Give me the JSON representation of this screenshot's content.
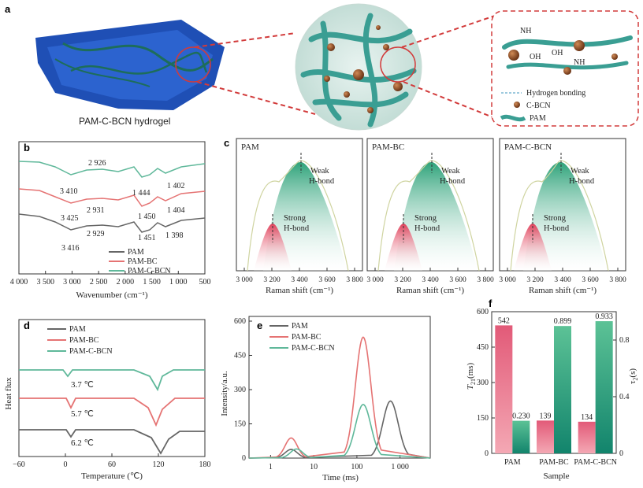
{
  "panels": {
    "a": {
      "label": "a",
      "caption": "PAM-C-BCN hydrogel",
      "legend": {
        "hbond": "Hydrogen bonding",
        "cbcn": "C-BCN",
        "pam": "PAM"
      },
      "groups": {
        "nh2_a": "NH",
        "oh_a": "OH",
        "oh_b": "OH",
        "nh2_b": "NH"
      }
    },
    "b": {
      "label": "b",
      "xlabel": "Wavenumber (cm⁻¹)",
      "ticks": [
        "4 000",
        "3 500",
        "3 000",
        "2 500",
        "2 000",
        "1 500",
        "1 000",
        "500"
      ],
      "legend": [
        "PAM",
        "PAM-BC",
        "PAM-C-BCN"
      ],
      "annotations": {
        "bcn": [
          "3 410",
          "2 926",
          "1 444",
          "1 402"
        ],
        "bc": [
          "3 425",
          "2 931",
          "1 450",
          "1 404"
        ],
        "pam": [
          "3 416",
          "2 929",
          "1 451",
          "1 398"
        ]
      }
    },
    "c": {
      "label": "c",
      "subpanels": [
        {
          "title": "PAM",
          "weak": [
            "Weak",
            "H-bond"
          ],
          "strong": [
            "Strong",
            "H-bond"
          ]
        },
        {
          "title": "PAM-BC",
          "weak": [
            "Weak",
            "H-bond"
          ],
          "strong": [
            "Strong",
            "H-bond"
          ]
        },
        {
          "title": "PAM-C-BCN",
          "weak": [
            "Weak",
            "H-bond"
          ],
          "strong": [
            "Strong",
            "H-bond"
          ]
        }
      ],
      "xlabel": "Raman shift (cm⁻¹)",
      "ticks": [
        "3 000",
        "3 200",
        "3 400",
        "3 600",
        "3 800"
      ]
    },
    "d": {
      "label": "d",
      "ylabel": "Heat flux",
      "xlabel": "Temperature (℃)",
      "ticks": [
        "−60",
        "0",
        "60",
        "120",
        "180"
      ],
      "legend": [
        "PAM",
        "PAM-BC",
        "PAM-C-BCN"
      ],
      "annotations": [
        "3.7 ℃",
        "5.7 ℃",
        "6.2 ℃"
      ]
    },
    "e": {
      "label": "e",
      "ylabel": "Intensity/a.u.",
      "xlabel": "Time (ms)",
      "xticks": [
        "1",
        "10",
        "100",
        "1 000"
      ],
      "yticks": [
        "0",
        "150",
        "300",
        "450",
        "600"
      ],
      "legend": [
        "PAM",
        "PAM-BC",
        "PAM-C-BCN"
      ]
    },
    "f": {
      "label": "f",
      "ylabel_left": "T",
      "ylabel_left_sub": "21",
      "ylabel_left_unit": "(ms)",
      "ylabel_right": "τ",
      "ylabel_right_sub": "2",
      "ylabel_right_unit": "(s)",
      "xlabel": "Sample",
      "left_ticks": [
        "0",
        "150",
        "300",
        "450",
        "600"
      ],
      "right_ticks": [
        "0",
        "0.4",
        "0.8"
      ]
    }
  },
  "chart_data": [
    {
      "type": "line",
      "panel": "b",
      "title": "",
      "xlabel": "Wavenumber (cm⁻¹)",
      "ylabel": "",
      "series": [
        {
          "name": "PAM",
          "peaks": [
            3416,
            2929,
            1451,
            1398
          ]
        },
        {
          "name": "PAM-BC",
          "peaks": [
            3425,
            2931,
            1450,
            1404
          ]
        },
        {
          "name": "PAM-C-BCN",
          "peaks": [
            3410,
            2926,
            1444,
            1402
          ]
        }
      ],
      "xlim": [
        4000,
        500
      ]
    },
    {
      "type": "line",
      "panel": "d",
      "xlabel": "Temperature (℃)",
      "ylabel": "Heat flux",
      "series": [
        {
          "name": "PAM",
          "transition": 6.2
        },
        {
          "name": "PAM-BC",
          "transition": 5.7
        },
        {
          "name": "PAM-C-BCN",
          "transition": 3.7
        }
      ],
      "xlim": [
        -60,
        180
      ]
    },
    {
      "type": "line",
      "panel": "e",
      "xlabel": "Time (ms)",
      "ylabel": "Intensity/a.u.",
      "series": [
        {
          "name": "PAM",
          "peak_time": 600,
          "peak": 250
        },
        {
          "name": "PAM-BC",
          "peak_time": 140,
          "peak": 530
        },
        {
          "name": "PAM-C-BCN",
          "peak_time": 140,
          "peak": 235
        }
      ],
      "ylim": [
        0,
        600
      ]
    },
    {
      "type": "bar",
      "panel": "f",
      "categories": [
        "PAM",
        "PAM-BC",
        "PAM-C-BCN"
      ],
      "series": [
        {
          "name": "T21 (ms)",
          "values": [
            542,
            139,
            134
          ],
          "labels": [
            "542",
            "139",
            "134"
          ]
        },
        {
          "name": "τ2 (s)",
          "values": [
            0.23,
            0.899,
            0.933
          ],
          "labels": [
            "0.230",
            "0.899",
            "0.933"
          ]
        }
      ],
      "ylim": [
        0,
        600
      ],
      "y2lim": [
        0,
        1.0
      ],
      "xlabel": "Sample"
    }
  ]
}
